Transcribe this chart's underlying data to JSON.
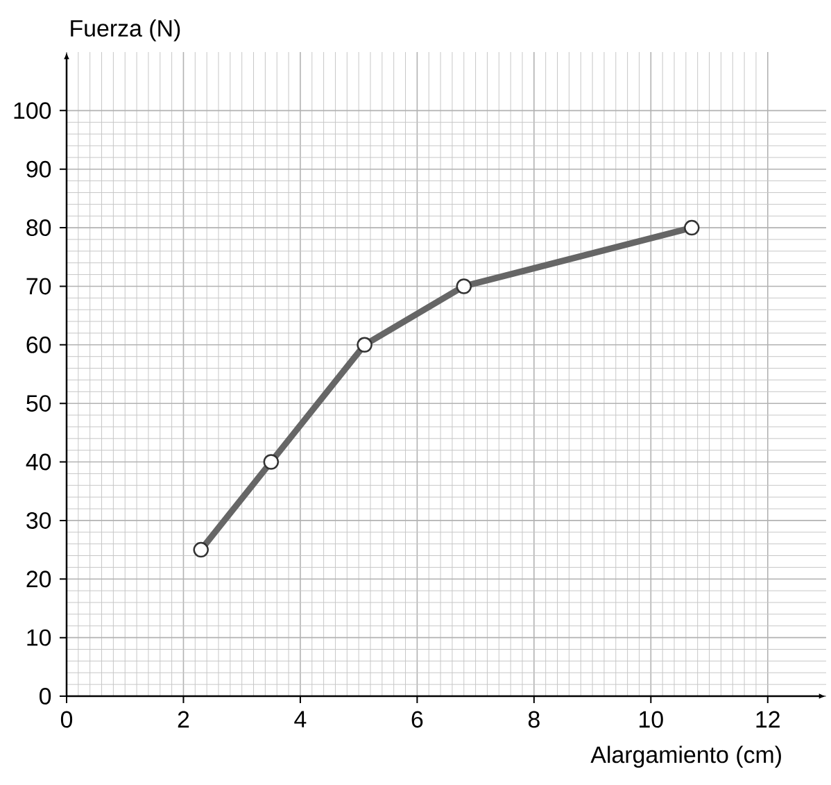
{
  "chart_data": {
    "type": "line",
    "xlabel": "Alargamiento (cm)",
    "ylabel": "Fuerza (N)",
    "x": [
      2.3,
      3.5,
      5.1,
      6.8,
      10.7
    ],
    "series": [
      {
        "color": "#666666",
        "values": [
          25,
          40,
          60,
          70,
          80
        ]
      }
    ],
    "xlim": [
      0,
      13
    ],
    "ylim": [
      0,
      110
    ],
    "xticks": [
      0,
      2,
      4,
      6,
      8,
      10,
      12
    ],
    "yticks": [
      0,
      10,
      20,
      30,
      40,
      50,
      60,
      70,
      80,
      90,
      100
    ],
    "grid": true,
    "marker": "circle",
    "line_style": "solid"
  }
}
